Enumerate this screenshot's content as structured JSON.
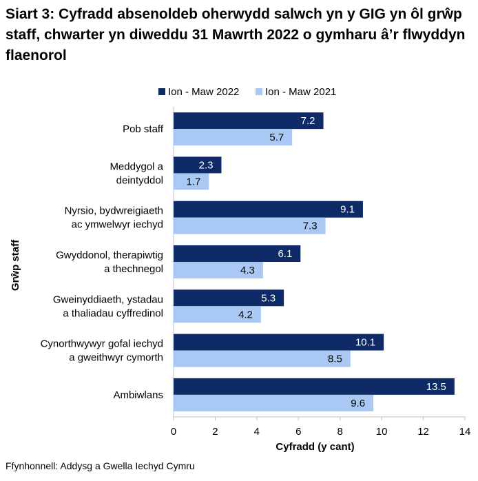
{
  "title": "Siart 3: Cyfradd absenoldeb oherwydd salwch yn y GIG yn ôl grŵp staff, chwarter yn diweddu 31 Mawrth 2022 o gymharu â’r flwyddyn flaenorol",
  "source": "Ffynhonnell: Addysg a Gwella Iechyd Cymru",
  "colors": {
    "series1": "#0e2b68",
    "series2": "#a9c9f4",
    "axis": "#bfbfbf",
    "grid": "#d9d9d9"
  },
  "chart_data": {
    "type": "bar",
    "orientation": "horizontal",
    "categories": [
      [
        "Pob staff"
      ],
      [
        "Meddygol a",
        "deintyddol"
      ],
      [
        "Nyrsio, bydwreigiaeth",
        "ac ymwelwyr iechyd"
      ],
      [
        "Gwyddonol, therapiwtig",
        "a thechnegol"
      ],
      [
        "Gweinyddiaeth, ystadau",
        "a thaliadau cyffredinol"
      ],
      [
        "Cynorthwywyr gofal iechyd",
        "a gweithwyr cymorth"
      ],
      [
        "Ambiwlans"
      ]
    ],
    "series": [
      {
        "name": "Ion - Maw 2022",
        "values": [
          7.2,
          2.3,
          9.1,
          6.1,
          5.3,
          10.1,
          13.5
        ]
      },
      {
        "name": "Ion - Maw 2021",
        "values": [
          5.7,
          1.7,
          7.3,
          4.3,
          4.2,
          8.5,
          9.6
        ]
      }
    ],
    "xlabel": "Cyfradd (y cant)",
    "ylabel": "Grŵp staff",
    "xlim": [
      0,
      14
    ],
    "xticks": [
      0,
      2,
      4,
      6,
      8,
      10,
      12,
      14
    ],
    "legend": "top"
  }
}
